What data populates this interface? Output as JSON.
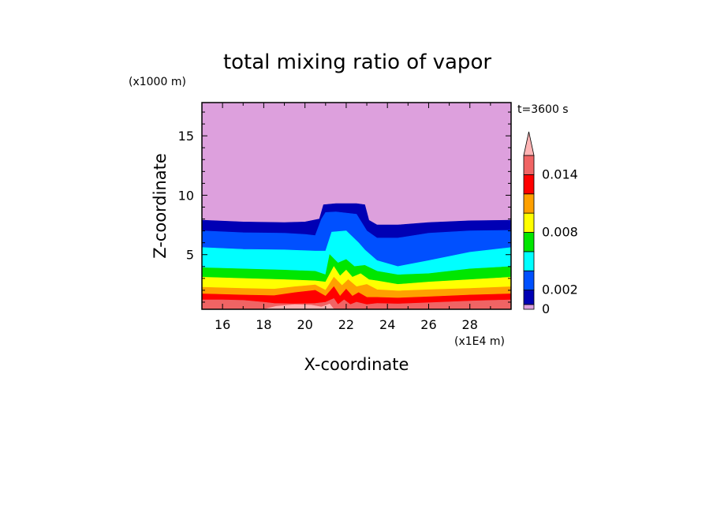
{
  "chart_data": {
    "type": "heatmap",
    "title": "total mixing ratio of vapor",
    "xlabel": "X-coordinate",
    "ylabel": "Z-coordinate",
    "x_units": "(x1E4 m)",
    "y_units": "(x1000 m)",
    "time_label": "t=3600 s",
    "xlim": [
      15,
      30
    ],
    "ylim": [
      0.4,
      17.8
    ],
    "x_ticks": [
      16,
      18,
      20,
      22,
      24,
      26,
      28
    ],
    "y_ticks": [
      5,
      10,
      15
    ],
    "colorbar": {
      "levels": [
        0,
        0.0005,
        0.002,
        0.004,
        0.006,
        0.008,
        0.01,
        0.012,
        0.014,
        0.016
      ],
      "extend": "max",
      "tick_values": [
        0,
        0.002,
        0.008,
        0.014
      ],
      "tick_labels": [
        "0",
        "0.002",
        "0.008",
        "0.014"
      ],
      "colors": [
        "#dda0dd",
        "#0000b4",
        "#0050ff",
        "#00ffff",
        "#00e600",
        "#ffff00",
        "#ffa000",
        "#ff0000",
        "#f06464",
        "#ffb4b4"
      ]
    },
    "contour_layers": [
      {
        "level": 0.0005,
        "color": "#0000b4",
        "x": [
          15,
          17,
          19,
          20,
          20.7,
          20.9,
          21.5,
          22.5,
          22.9,
          23.1,
          23.5,
          24.5,
          26,
          28,
          30
        ],
        "z": [
          7.9,
          7.75,
          7.7,
          7.75,
          8.0,
          9.2,
          9.3,
          9.3,
          9.2,
          7.9,
          7.5,
          7.5,
          7.7,
          7.85,
          7.9
        ]
      },
      {
        "level": 0.002,
        "color": "#0050ff",
        "x": [
          15,
          17,
          19,
          20,
          20.5,
          20.8,
          21.0,
          21.5,
          22.5,
          23.0,
          23.5,
          24.5,
          26,
          28,
          30
        ],
        "z": [
          7.0,
          6.85,
          6.8,
          6.7,
          6.6,
          8.0,
          8.55,
          8.6,
          8.4,
          7.0,
          6.4,
          6.4,
          6.8,
          7.0,
          7.05
        ]
      },
      {
        "level": 0.004,
        "color": "#00ffff",
        "x": [
          15,
          17,
          19,
          20.5,
          21.0,
          21.3,
          22.0,
          22.6,
          22.9,
          23.5,
          24.5,
          26,
          28,
          30
        ],
        "z": [
          5.6,
          5.45,
          5.4,
          5.3,
          5.3,
          6.9,
          7.0,
          6.0,
          5.4,
          4.5,
          4.0,
          4.5,
          5.2,
          5.6
        ]
      },
      {
        "level": 0.006,
        "color": "#00e600",
        "x": [
          15,
          17,
          19,
          20.5,
          21.0,
          21.2,
          21.6,
          22.0,
          22.4,
          22.9,
          23.5,
          24.5,
          26,
          28,
          30
        ],
        "z": [
          3.9,
          3.8,
          3.7,
          3.6,
          3.3,
          5.0,
          4.3,
          4.6,
          4.0,
          4.1,
          3.6,
          3.3,
          3.4,
          3.8,
          4.0
        ]
      },
      {
        "level": 0.008,
        "color": "#ffff00",
        "x": [
          15,
          17,
          19,
          20.5,
          21.0,
          21.4,
          21.7,
          22.0,
          22.3,
          22.7,
          23.1,
          23.5,
          24.5,
          26,
          28,
          30
        ],
        "z": [
          3.1,
          3.0,
          2.9,
          2.8,
          2.7,
          4.0,
          3.2,
          3.7,
          3.1,
          3.4,
          2.9,
          2.8,
          2.5,
          2.7,
          2.9,
          3.1
        ]
      },
      {
        "level": 0.01,
        "color": "#ffa000",
        "x": [
          15,
          17,
          18.5,
          19.5,
          20.5,
          21.0,
          21.4,
          21.8,
          22.1,
          22.5,
          23.0,
          23.5,
          24.5,
          26,
          28,
          30
        ],
        "z": [
          2.25,
          2.15,
          2.1,
          2.3,
          2.45,
          2.0,
          3.1,
          2.4,
          2.9,
          2.3,
          2.5,
          2.05,
          1.95,
          2.05,
          2.15,
          2.3
        ]
      },
      {
        "level": 0.012,
        "color": "#ff0000",
        "x": [
          15,
          17,
          18.5,
          19.5,
          20.5,
          21.0,
          21.4,
          21.7,
          22.0,
          22.3,
          22.6,
          23.0,
          23.5,
          24.5,
          26,
          28,
          30
        ],
        "z": [
          1.7,
          1.6,
          1.55,
          1.8,
          2.0,
          1.5,
          2.3,
          1.5,
          2.1,
          1.5,
          1.8,
          1.4,
          1.4,
          1.35,
          1.45,
          1.6,
          1.7
        ]
      },
      {
        "level": 0.014,
        "color": "#f06464",
        "x": [
          15,
          16,
          17,
          18,
          18.5,
          19.5,
          20.5,
          21.0,
          21.4,
          21.6,
          21.9,
          22.2,
          22.5,
          23.0,
          23.5,
          24.5,
          26,
          28,
          30
        ],
        "z": [
          1.2,
          1.2,
          1.15,
          1.0,
          0.9,
          0.85,
          0.9,
          1.0,
          1.3,
          0.8,
          1.2,
          0.8,
          1.0,
          0.8,
          0.9,
          0.85,
          0.95,
          1.1,
          1.2
        ]
      },
      {
        "level": 0.016,
        "color": "#ffb4b4",
        "x": [
          15,
          18.0,
          18.6,
          19.5,
          20.3,
          20.8,
          21.2,
          21.4,
          21.6,
          30
        ],
        "z": [
          0.4,
          0.4,
          0.65,
          0.8,
          0.75,
          0.6,
          0.85,
          0.4,
          0.4,
          0.4
        ]
      }
    ]
  }
}
